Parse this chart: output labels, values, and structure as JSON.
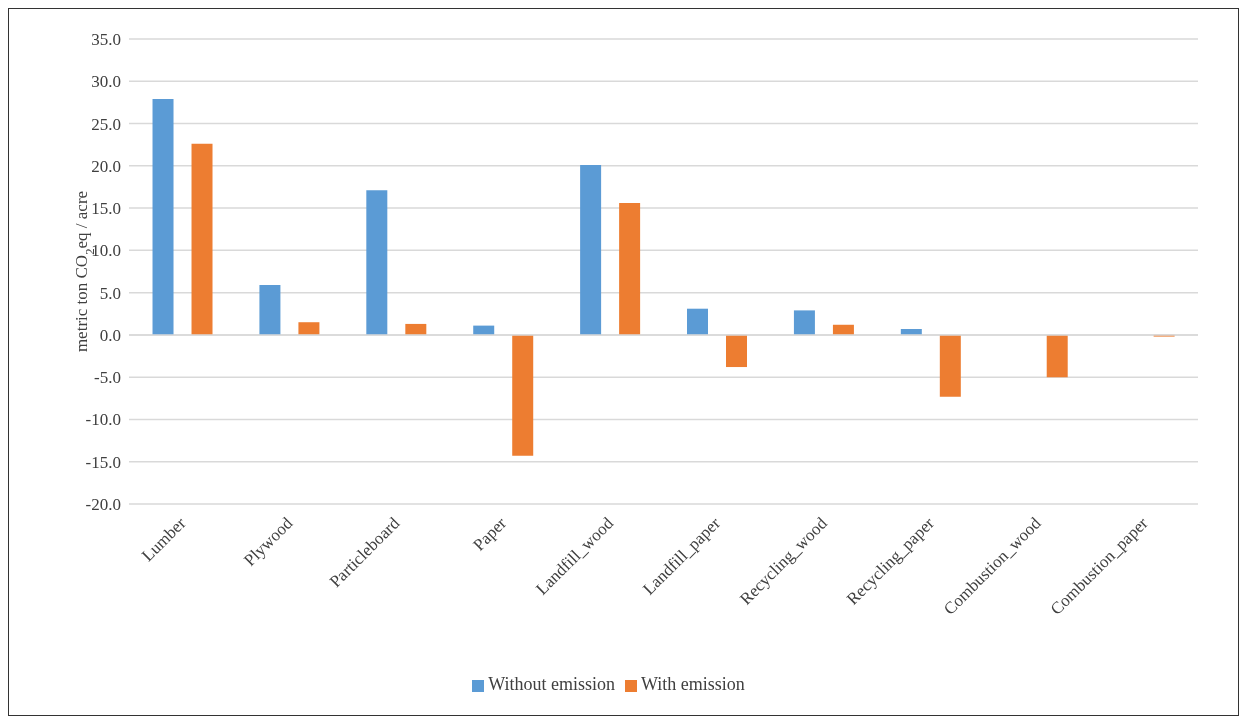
{
  "chart_data": {
    "type": "bar",
    "ylabel": "metric ton CO$_{2}$eq / acre",
    "categories": [
      "Lumber",
      "Plywood",
      "Particleboard",
      "Paper",
      "Landfill_wood",
      "Landfill_paper",
      "Recycling_wood",
      "Recycling_paper",
      "Combustion_wood",
      "Combustion_paper"
    ],
    "series": [
      {
        "name": "Without emission",
        "color": "#5b9bd5",
        "values": [
          27.9,
          5.9,
          17.1,
          1.1,
          20.1,
          3.1,
          2.9,
          0.7,
          0,
          0
        ]
      },
      {
        "name": "With emission",
        "color": "#ed7d31",
        "values": [
          22.6,
          1.5,
          1.3,
          -14.3,
          15.6,
          -3.8,
          1.2,
          -7.3,
          -5.0,
          -0.2
        ]
      }
    ],
    "ylim": [
      -20,
      35
    ],
    "yticks": [
      {
        "value": -20,
        "label": "-20.0"
      },
      {
        "value": -15,
        "label": "-15.0"
      },
      {
        "value": -10,
        "label": "-10.0"
      },
      {
        "value": -5,
        "label": "-5.0"
      },
      {
        "value": 0,
        "label": "0.0"
      },
      {
        "value": 5,
        "label": "5.0"
      },
      {
        "value": 10,
        "label": "10.0"
      },
      {
        "value": 15,
        "label": "15.0"
      },
      {
        "value": 20,
        "label": "20.0"
      },
      {
        "value": 25,
        "label": "25.0"
      },
      {
        "value": 30,
        "label": "30.0"
      },
      {
        "value": 35,
        "label": "35.0"
      }
    ],
    "grid": "y",
    "legend": "bottom"
  }
}
